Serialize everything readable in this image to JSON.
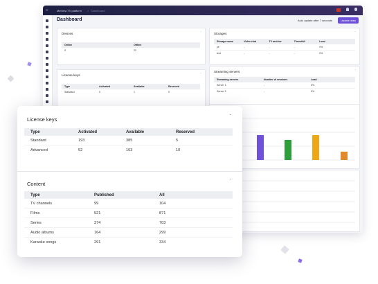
{
  "topbar": {
    "brand": "Mimiera TV platform",
    "breadcrumb": "Dashboard"
  },
  "page_title": "Dashboard",
  "auto_update": "Auto update after 7 seconds",
  "update_button": "Update data",
  "devices": {
    "title": "Devices",
    "columns": [
      "Online",
      "Offline"
    ],
    "rows": [
      [
        "0",
        "22"
      ]
    ]
  },
  "license_keys_back": {
    "title": "License keys",
    "columns": [
      "Type",
      "Activated",
      "Available",
      "Reserved"
    ],
    "rows": [
      [
        "Standard",
        "0",
        "1",
        "0"
      ]
    ]
  },
  "storages": {
    "title": "Storages",
    "columns": [
      "Storage name",
      "Video club",
      "TV archive",
      "Timeshift",
      "Load"
    ],
    "rows": [
      [
        "ye",
        "-",
        "-",
        "-",
        "0%"
      ],
      [
        "test",
        "-",
        "-",
        "-",
        "0%"
      ]
    ]
  },
  "streaming_servers": {
    "title": "Streaming servers",
    "columns": [
      "Streaming servers",
      "Number of sessions",
      "Load"
    ],
    "rows": [
      [
        "Server 1",
        "-",
        "0%"
      ],
      [
        "Server 2",
        "-",
        "0%"
      ]
    ]
  },
  "license_keys": {
    "title": "License keys",
    "columns": [
      "Type",
      "Activated",
      "Available",
      "Reserved"
    ],
    "rows": [
      [
        "Standard",
        "193",
        "385",
        "5"
      ],
      [
        "Advanced",
        "52",
        "163",
        "10"
      ]
    ]
  },
  "content": {
    "title": "Content",
    "columns": [
      "Type",
      "Published",
      "All"
    ],
    "rows": [
      [
        "TV channels",
        "99",
        "104"
      ],
      [
        "Films",
        "521",
        "871"
      ],
      [
        "Series",
        "374",
        "703"
      ],
      [
        "Audio albums",
        "164",
        "299"
      ],
      [
        "Karaoke songs",
        "291",
        "334"
      ]
    ]
  }
}
